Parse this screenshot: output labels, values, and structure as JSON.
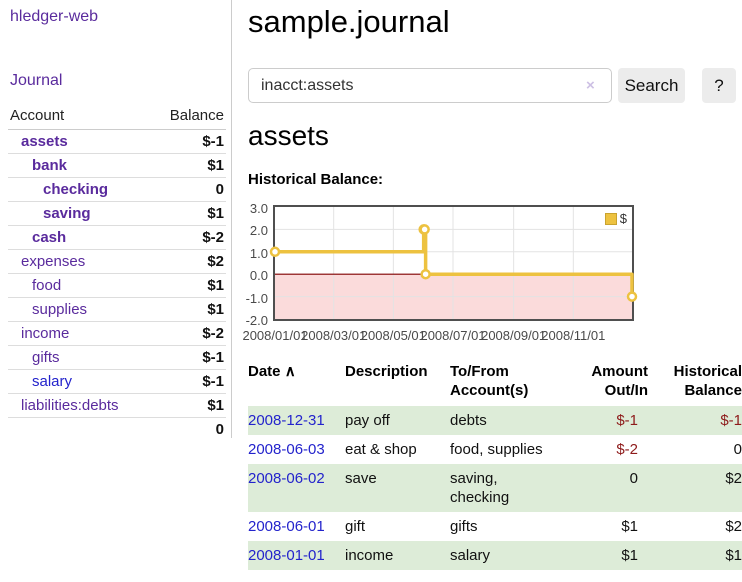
{
  "app": {
    "title": "hledger-web"
  },
  "sidebar": {
    "journal_link": "Journal",
    "header": {
      "account": "Account",
      "balance": "Balance"
    },
    "accounts": [
      {
        "name": "assets",
        "balance": "$-1"
      },
      {
        "name": "bank",
        "balance": "$1"
      },
      {
        "name": "checking",
        "balance": "0"
      },
      {
        "name": "saving",
        "balance": "$1"
      },
      {
        "name": "cash",
        "balance": "$-2"
      },
      {
        "name": "expenses",
        "balance": "$2"
      },
      {
        "name": "food",
        "balance": "$1"
      },
      {
        "name": "supplies",
        "balance": "$1"
      },
      {
        "name": "income",
        "balance": "$-2"
      },
      {
        "name": "gifts",
        "balance": "$-1"
      },
      {
        "name": "salary",
        "balance": "$-1"
      },
      {
        "name": "liabilities:debts",
        "balance": "$1"
      }
    ],
    "total": "0"
  },
  "main": {
    "title": "sample.journal",
    "search": {
      "value": "inacct:assets",
      "clear_icon": "×",
      "button": "Search",
      "help_button": "?"
    },
    "section_title": "assets",
    "chart_title": "Historical Balance:"
  },
  "chart_data": {
    "type": "line",
    "title": "Historical Balance",
    "step": true,
    "series": [
      {
        "name": "$",
        "color": "#edc240",
        "points": [
          [
            "2008-01-01",
            1
          ],
          [
            "2008-06-01",
            2
          ],
          [
            "2008-06-02",
            2
          ],
          [
            "2008-06-03",
            0
          ],
          [
            "2008-12-31",
            -1
          ]
        ]
      }
    ],
    "xlim": [
      "2008-01-01",
      "2008-12-31"
    ],
    "ylim": [
      -2,
      3
    ],
    "y_ticks": [
      3,
      2,
      1,
      0,
      -1,
      -2
    ],
    "y_tick_labels": [
      "3.0",
      "2.0",
      "1.0",
      "0.0",
      "-1.0",
      "-2.0"
    ],
    "x_ticks": [
      "2008-01-01",
      "2008-03-01",
      "2008-05-01",
      "2008-07-01",
      "2008-09-01",
      "2008-11-01"
    ],
    "x_tick_labels": [
      "2008/01/01",
      "2008/03/01",
      "2008/05/01",
      "2008/07/01",
      "2008/09/01",
      "2008/11/01"
    ],
    "grid": true,
    "legend": {
      "label": "$",
      "position": "top-right"
    },
    "negative_region_color": "#fbdbdb",
    "zero_line_color": "#800000"
  },
  "table": {
    "headers": {
      "date": "Date",
      "sort_indicator": "∧",
      "description": "Description",
      "tofrom": [
        "To/From",
        "Account(s)"
      ],
      "amount": [
        "Amount",
        "Out/In"
      ],
      "historical": [
        "Historical",
        "Balance"
      ]
    },
    "rows": [
      {
        "date": "2008-12-31",
        "description": "pay off",
        "accounts": "debts",
        "amount": "$-1",
        "historical": "$-1"
      },
      {
        "date": "2008-06-03",
        "description": "eat & shop",
        "accounts": "food, supplies",
        "amount": "$-2",
        "historical": "0"
      },
      {
        "date": "2008-06-02",
        "description": "save",
        "accounts": "saving, checking",
        "amount": "0",
        "historical": "$2"
      },
      {
        "date": "2008-06-01",
        "description": "gift",
        "accounts": "gifts",
        "amount": "$1",
        "historical": "$2"
      },
      {
        "date": "2008-01-01",
        "description": "income",
        "accounts": "salary",
        "amount": "$1",
        "historical": "$1"
      }
    ]
  }
}
